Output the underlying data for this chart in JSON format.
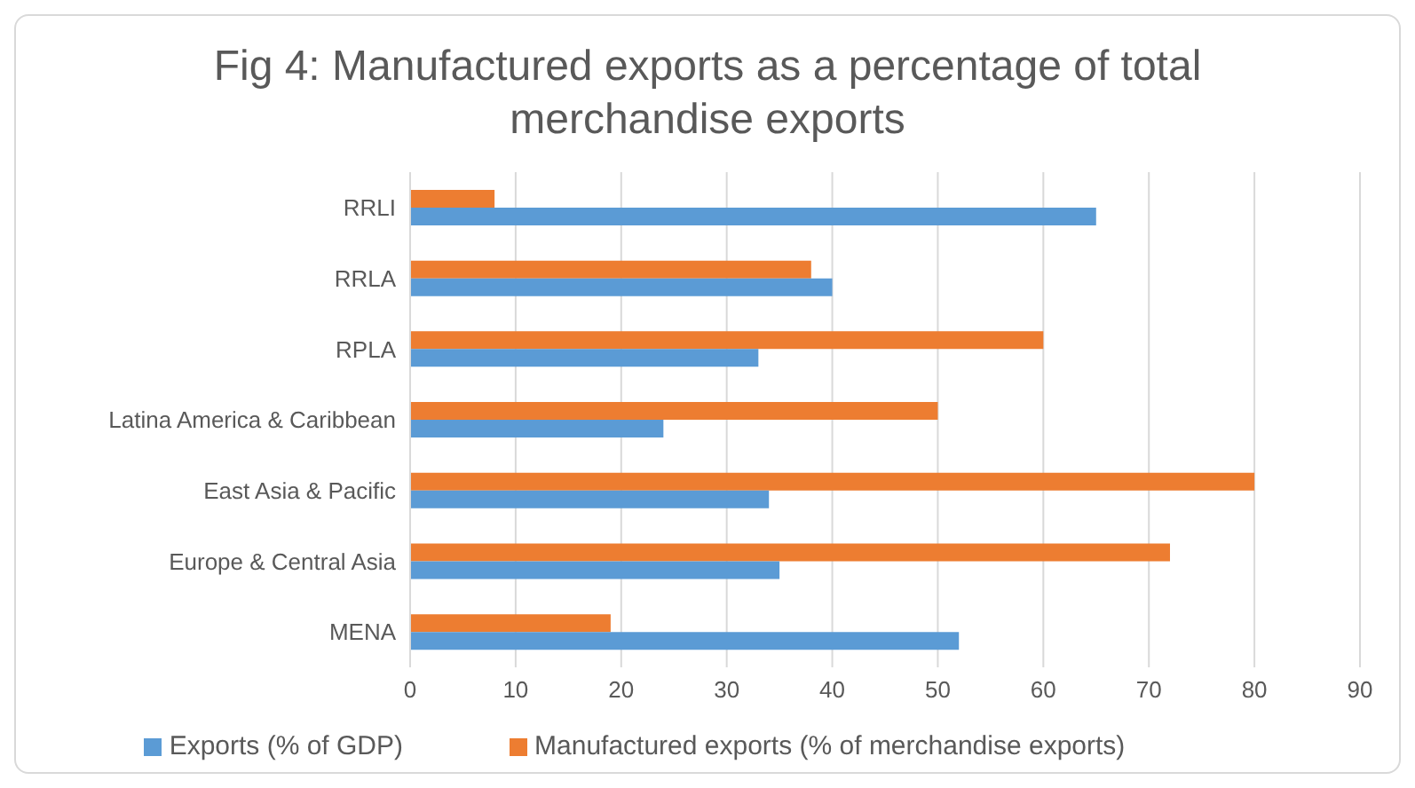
{
  "chart_data": {
    "type": "bar",
    "orientation": "horizontal",
    "title": "Fig 4: Manufactured exports as a percentage of total merchandise exports",
    "categories": [
      "RRLI",
      "RRLA",
      "RPLA",
      "Latina America & Caribbean",
      "East Asia & Pacific",
      "Europe & Central Asia",
      "MENA"
    ],
    "series": [
      {
        "name": "Manufactured exports (% of merchandise exports)",
        "color": "#ed7d31",
        "values": [
          8,
          38,
          60,
          50,
          80,
          72,
          19
        ]
      },
      {
        "name": "Exports (% of GDP)",
        "color": "#5b9bd5",
        "values": [
          65,
          40,
          33,
          24,
          34,
          35,
          52
        ]
      }
    ],
    "xlim": [
      0,
      90
    ],
    "xticks": [
      0,
      10,
      20,
      30,
      40,
      50,
      60,
      70,
      80,
      90
    ],
    "grid": "x",
    "legend": "bottom"
  }
}
